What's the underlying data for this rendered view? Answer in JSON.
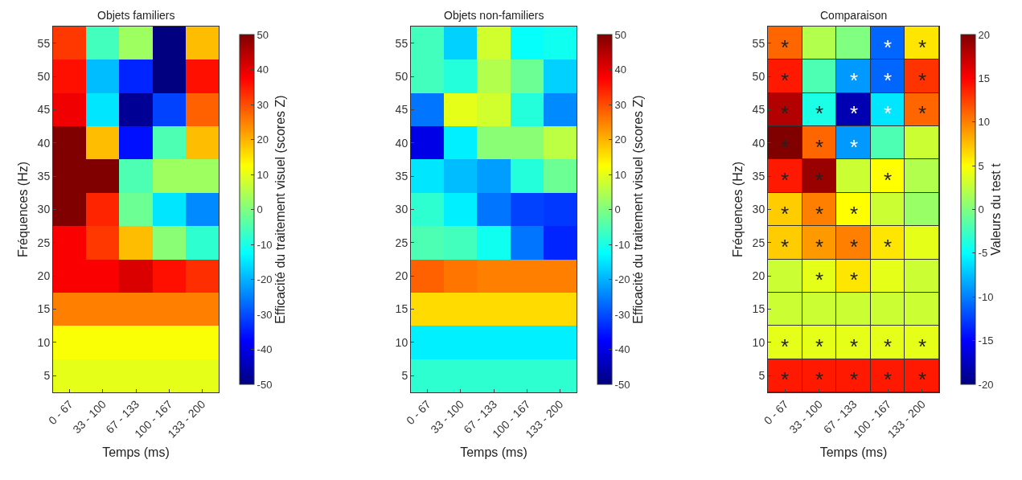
{
  "chart_data": [
    {
      "type": "heatmap",
      "title": "Objets familiers",
      "xlabel": "Temps (ms)",
      "ylabel": "Fréquences (Hz)",
      "clabel": "Efficacité du traitement visuel (scores Z)",
      "categories": [
        "0 - 67",
        "33 - 100",
        "67 - 133",
        "100 - 167",
        "133 - 200"
      ],
      "y_categories": [
        "55",
        "50",
        "45",
        "40",
        "35",
        "30",
        "25",
        "20",
        "15",
        "10",
        "5"
      ],
      "cells": [
        [
          32,
          -6,
          3,
          -50,
          19
        ],
        [
          36,
          -19,
          -34,
          -50,
          36
        ],
        [
          39,
          -15,
          -48,
          -31,
          28
        ],
        [
          50,
          19,
          -36,
          -5,
          19
        ],
        [
          50,
          50,
          -5,
          3,
          3
        ],
        [
          50,
          34,
          -2,
          -15,
          -24
        ],
        [
          38,
          32,
          19,
          1,
          -8
        ],
        [
          38,
          38,
          41,
          36,
          33
        ],
        [
          25,
          25,
          25,
          25,
          25
        ],
        [
          12,
          12,
          12,
          12,
          12
        ],
        [
          10,
          10,
          10,
          10,
          10
        ]
      ],
      "clim": [
        -50,
        50
      ],
      "cticks": [
        -50,
        -40,
        -30,
        -20,
        -10,
        0,
        10,
        20,
        30,
        40,
        50
      ]
    },
    {
      "type": "heatmap",
      "title": "Objets non-familiers",
      "xlabel": "Temps (ms)",
      "clabel": "Efficacité du traitement visuel (scores Z)",
      "categories": [
        "0 - 67",
        "33 - 100",
        "67 - 133",
        "100 - 167",
        "133 - 200"
      ],
      "y_categories": [
        "55",
        "50",
        "45",
        "40",
        "35",
        "30",
        "25",
        "20",
        "15",
        "10",
        "5"
      ],
      "cells": [
        [
          -6,
          -17,
          8,
          -12,
          -11
        ],
        [
          -6,
          -9,
          5,
          -2,
          -17
        ],
        [
          -26,
          10,
          8,
          -9,
          -24
        ],
        [
          -40,
          -14,
          1,
          1,
          6
        ],
        [
          -15,
          -19,
          -22,
          -9,
          -2
        ],
        [
          -8,
          -14,
          -26,
          -31,
          -32
        ],
        [
          -5,
          -6,
          -11,
          -26,
          -34
        ],
        [
          28,
          26,
          25,
          25,
          25
        ],
        [
          16,
          16,
          16,
          16,
          16
        ],
        [
          -14,
          -14,
          -14,
          -14,
          -14
        ],
        [
          -8,
          -8,
          -8,
          -8,
          -8
        ]
      ],
      "clim": [
        -50,
        50
      ],
      "cticks": [
        -50,
        -40,
        -30,
        -20,
        -10,
        0,
        10,
        20,
        30,
        40,
        50
      ]
    },
    {
      "type": "heatmap",
      "title": "Comparaison",
      "xlabel": "Temps (ms)",
      "ylabel": "Fréquences (Hz)",
      "clabel": "Valeurs du test t",
      "categories": [
        "0 - 67",
        "33 - 100",
        "67 - 133",
        "100 - 167",
        "133 - 200"
      ],
      "y_categories": [
        "55",
        "50",
        "45",
        "40",
        "35",
        "30",
        "25",
        "20",
        "15",
        "10",
        "5"
      ],
      "cells": [
        [
          11,
          2,
          0,
          -11,
          6
        ],
        [
          14,
          -2,
          -9,
          -11,
          13
        ],
        [
          18,
          -4,
          -18,
          -6,
          11
        ],
        [
          20,
          11,
          -9,
          -2,
          3
        ],
        [
          14,
          19,
          3,
          5,
          2
        ],
        [
          7,
          10,
          5,
          3,
          1
        ],
        [
          7,
          9,
          10,
          6,
          4
        ],
        [
          3,
          4,
          6,
          4,
          3
        ],
        [
          3,
          3,
          3,
          3,
          3
        ],
        [
          4,
          4,
          4,
          4,
          4
        ],
        [
          14,
          14,
          14,
          14,
          14
        ]
      ],
      "cell_labels": [
        [
          "*",
          null,
          null,
          "*",
          "*"
        ],
        [
          "*",
          null,
          "*",
          "*",
          "*"
        ],
        [
          "*",
          "*",
          "*",
          "*",
          "*"
        ],
        [
          "*",
          "*",
          "*",
          null,
          null
        ],
        [
          "*",
          "*",
          null,
          "*",
          null
        ],
        [
          "*",
          "*",
          "*",
          null,
          null
        ],
        [
          "*",
          "*",
          "*",
          "*",
          null
        ],
        [
          null,
          "*",
          "*",
          null,
          null
        ],
        [
          null,
          null,
          null,
          null,
          null
        ],
        [
          "*",
          "*",
          "*",
          "*",
          "*"
        ],
        [
          "*",
          "*",
          "*",
          "*",
          "*"
        ]
      ],
      "clim": [
        -20,
        20
      ],
      "cticks": [
        -20,
        -15,
        -10,
        -5,
        0,
        5,
        10,
        15,
        20
      ]
    }
  ]
}
